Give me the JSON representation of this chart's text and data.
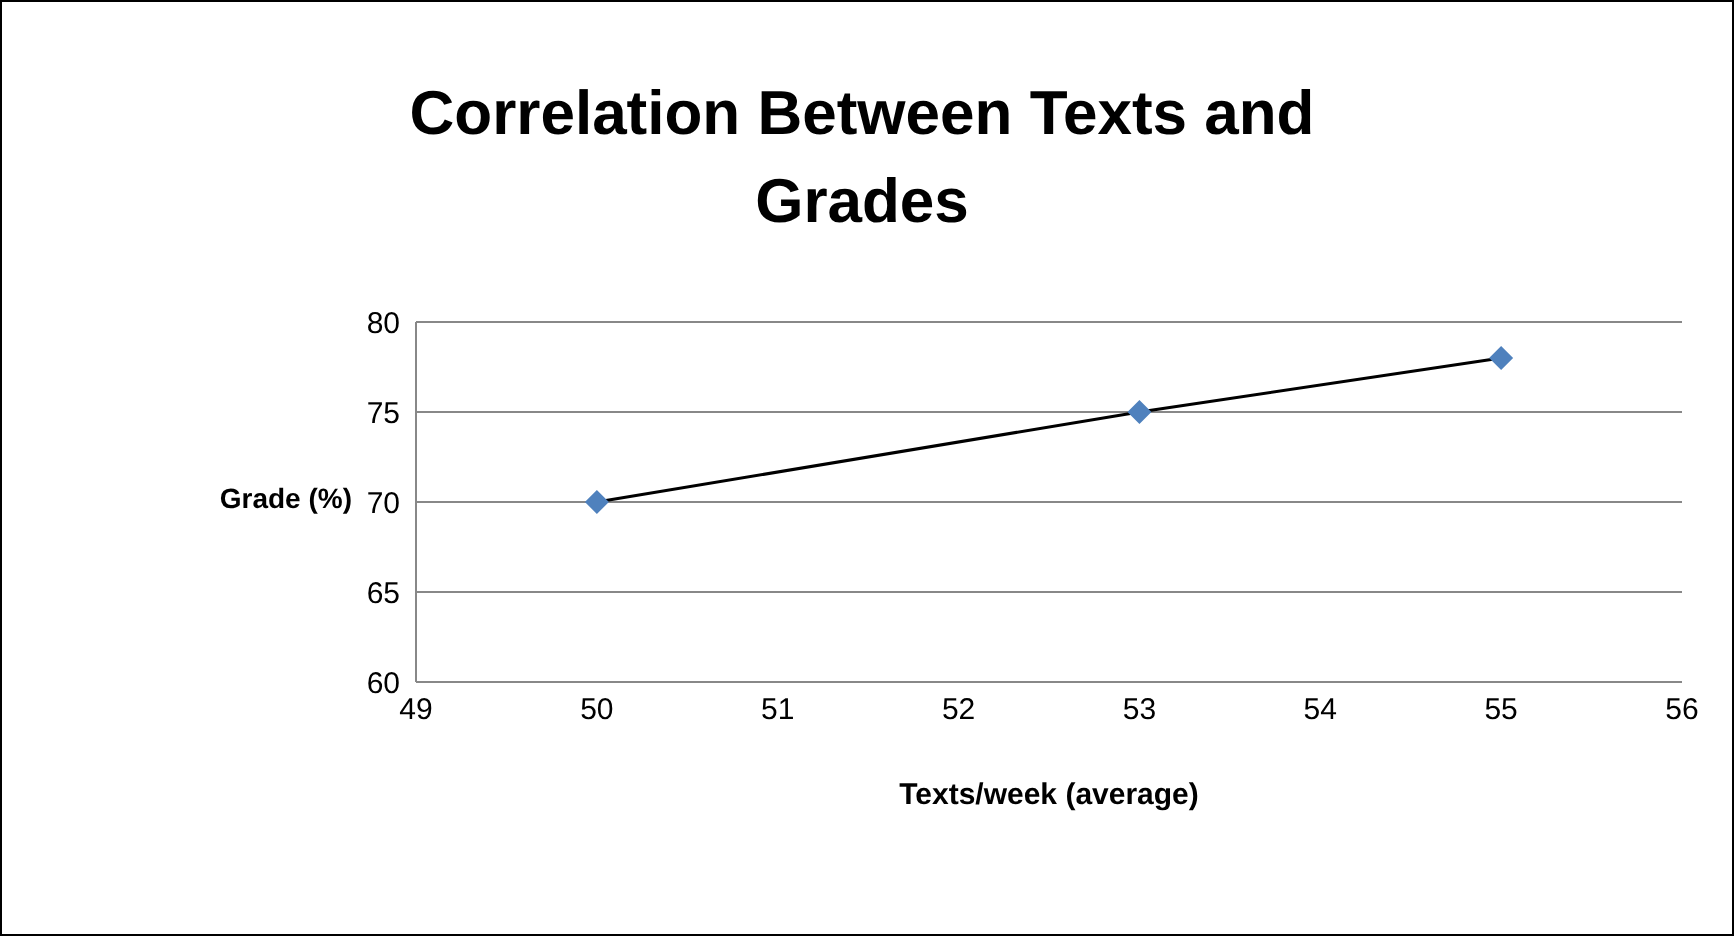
{
  "chart_data": {
    "type": "line",
    "title": "Correlation Between Texts and Grades",
    "xlabel": "Texts/week (average)",
    "ylabel": "Grade (%)",
    "x": [
      50,
      53,
      55
    ],
    "series": [
      {
        "color": "#4f81bd",
        "values": [
          70,
          75,
          78
        ]
      }
    ],
    "xlim": [
      49,
      56
    ],
    "xticks": [
      49,
      50,
      51,
      52,
      53,
      54,
      55,
      56
    ],
    "ylim": [
      60,
      80
    ],
    "yticks": [
      60,
      65,
      70,
      75,
      80
    ],
    "grid": "y",
    "legend": false,
    "marker": "diamond",
    "line_style": "solid"
  }
}
